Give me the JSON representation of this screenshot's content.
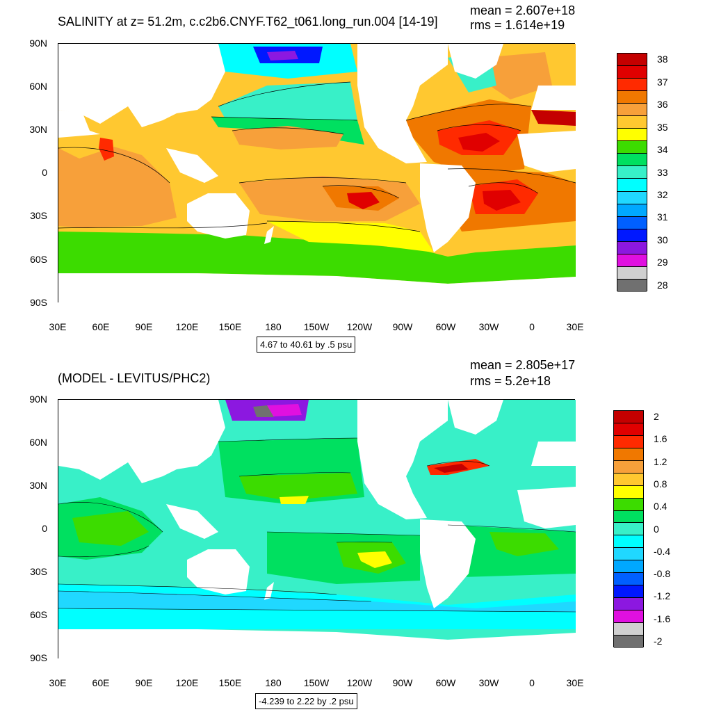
{
  "panels": [
    {
      "title": "SALINITY at z=  51.2m, c.c2b6.CNYF.T62_t061.long_run.004 [14-19]",
      "mean_text": "mean = 2.607e+18",
      "rms_text": "rms = 1.614e+19",
      "range_text": "4.67 to 40.61 by .5 psu",
      "colorbar_labels": [
        "38",
        "37",
        "36",
        "35",
        "34",
        "33",
        "32",
        "31",
        "30",
        "29",
        "28"
      ],
      "colorbar_colors": [
        "#c40000",
        "#e00000",
        "#ff2a00",
        "#f07800",
        "#f7a03a",
        "#ffc830",
        "#ffff00",
        "#3cdc00",
        "#00e060",
        "#38f0c8",
        "#00ffff",
        "#20d8ff",
        "#00a8ff",
        "#0060ff",
        "#0018ff",
        "#8c18e0",
        "#e010e0",
        "#d0d0d0",
        "#707070"
      ]
    },
    {
      "title": "(MODEL - LEVITUS/PHC2)",
      "mean_text": "mean = 2.805e+17",
      "rms_text": "rms = 5.2e+18",
      "range_text": "-4.239 to 2.22 by .2 psu",
      "colorbar_labels": [
        "2",
        "1.6",
        "1.2",
        "0.8",
        "0.4",
        "0",
        "-0.4",
        "-0.8",
        "-1.2",
        "-1.6",
        "-2"
      ],
      "colorbar_colors": [
        "#c40000",
        "#e00000",
        "#ff2a00",
        "#f07800",
        "#f7a03a",
        "#ffc830",
        "#ffff00",
        "#3cdc00",
        "#00e060",
        "#38f0c8",
        "#00ffff",
        "#20d8ff",
        "#00a8ff",
        "#0060ff",
        "#0018ff",
        "#8c18e0",
        "#e010e0",
        "#d0d0d0",
        "#707070"
      ]
    }
  ],
  "lat_labels": [
    "90N",
    "60N",
    "30N",
    "0",
    "30S",
    "60S",
    "90S"
  ],
  "lon_labels": [
    "30E",
    "60E",
    "90E",
    "120E",
    "150E",
    "180",
    "150W",
    "120W",
    "90W",
    "60W",
    "30W",
    "0",
    "30E"
  ],
  "ocean_colors": {
    "p1": [
      "#3cdc00",
      "#ffff00",
      "#ffc830",
      "#f7a03a",
      "#f07800",
      "#ff2a00",
      "#e00000",
      "#38f0c8",
      "#00ffff",
      "#0018ff",
      "#8c18e0",
      "#e010e0",
      "#ffffff",
      "#000000"
    ],
    "p2": [
      "#00ffff",
      "#38f0c8",
      "#00e060",
      "#3cdc00",
      "#20d8ff",
      "#ffff00",
      "#ff2a00",
      "#c40000",
      "#e010e0",
      "#8c18e0",
      "#707070",
      "#d0d0d0",
      "#ffffff",
      "#000000"
    ]
  }
}
